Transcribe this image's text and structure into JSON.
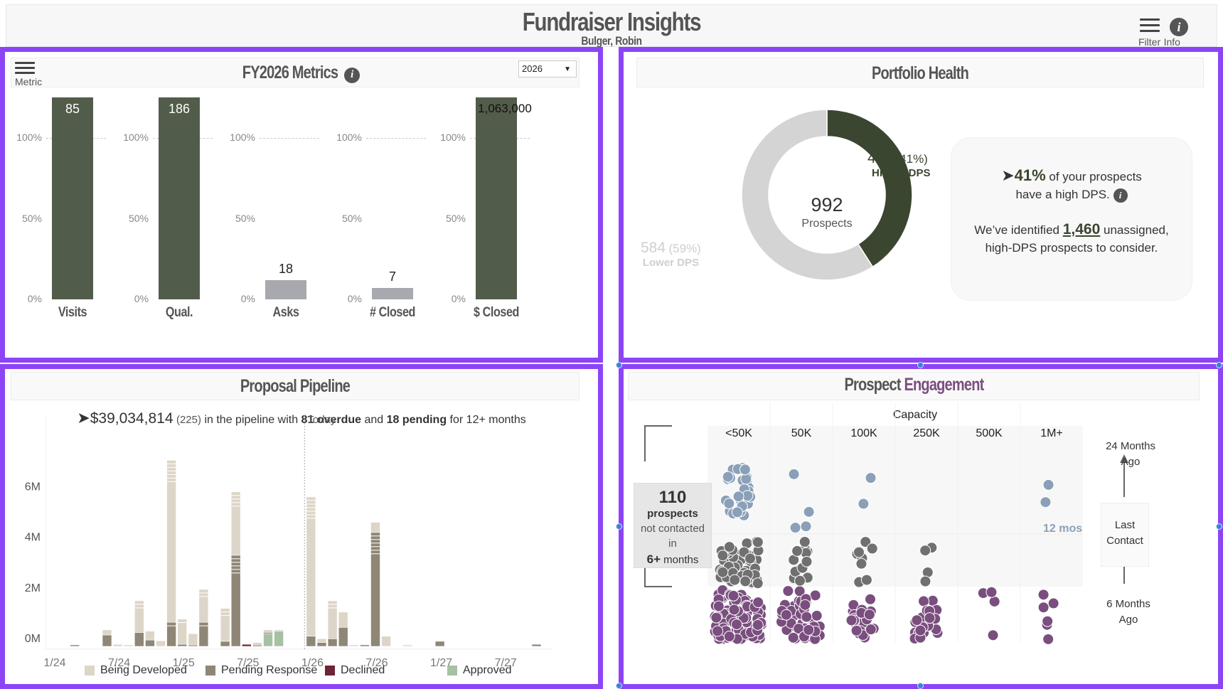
{
  "header": {
    "title": "Fundraiser Insights",
    "subtitle": "Bulger, Robin",
    "filter_label": "Filter",
    "info_label": "Info",
    "filter_icon": "hamburger-menu-icon",
    "info_icon": "info-icon"
  },
  "colors": {
    "panel_border": "#8d44f7",
    "accent_green": "#525c4a",
    "dark_green": "#3a4630",
    "gray_bar": "#a7a9ae",
    "purple_engagement": "#7a4e7e",
    "blue_dot": "#8aa0b8",
    "gray_dot": "#707070"
  },
  "metrics": {
    "title": "FY2026 Metrics",
    "menu_label": "Metric",
    "year_select": {
      "value": "2026"
    },
    "tick_labels": [
      "100%",
      "50%",
      "0%"
    ],
    "items": [
      {
        "label": "Visits",
        "value": "85",
        "pct_of_goal": 1.25,
        "color": "#525c4a",
        "label_inside": true
      },
      {
        "label": "Qual.",
        "value": "186",
        "pct_of_goal": 1.25,
        "color": "#525c4a",
        "label_inside": true
      },
      {
        "label": "Asks",
        "value": "18",
        "pct_of_goal": 0.12,
        "color": "#a7a9ae",
        "label_inside": false
      },
      {
        "label": "# Closed",
        "value": "7",
        "pct_of_goal": 0.07,
        "color": "#a7a9ae",
        "label_inside": false
      },
      {
        "label": "$ Closed",
        "value": "1,063,000",
        "pct_of_goal": 1.25,
        "color": "#525c4a",
        "label_inside": true
      }
    ]
  },
  "portfolio": {
    "title": "Portfolio Health",
    "total": "992",
    "total_label": "Prospects",
    "higher": {
      "count": "408",
      "pct": "(41%)",
      "label": "Higher DPS",
      "share": 0.41,
      "color": "#3a4630"
    },
    "lower": {
      "count": "584",
      "pct": "(59%)",
      "label": "Lower DPS",
      "share": 0.59,
      "color": "#d4d4d4"
    },
    "insight": {
      "pct": "41%",
      "line1_rest": "of your prospects",
      "line2": "have a high DPS.",
      "line3_pre": "We’ve identified",
      "link_value": "1,460",
      "line3_post": "unassigned,",
      "line4": "high-DPS prospects to consider."
    }
  },
  "pipeline": {
    "title": "Proposal Pipeline",
    "summary": {
      "amount": "$39,034,814",
      "count": "(225)",
      "text1": "in the pipeline with",
      "overdue": "81 overdue",
      "text2": "and",
      "pending": "18 pending",
      "text3": "for 12+ months"
    },
    "today_label": "Today",
    "legend": [
      {
        "label": "Being Developed",
        "color": "#ddd6c8"
      },
      {
        "label": "Pending Response",
        "color": "#8f8676"
      },
      {
        "label": "Declined",
        "color": "#6e2336"
      },
      {
        "label": "Approved",
        "color": "#a7c1a3"
      }
    ]
  },
  "chart_data": {
    "type": "bar",
    "title": "Proposal Pipeline",
    "stacked": true,
    "xlabel": "",
    "ylabel": "",
    "y_ticks": [
      "0M",
      "2M",
      "4M",
      "6M"
    ],
    "ylim": [
      0,
      7.5
    ],
    "x_ticks": [
      "1/24",
      "7/24",
      "1/25",
      "7/25",
      "1/26",
      "7/26",
      "1/27",
      "7/27"
    ],
    "x_tick_months": [
      0,
      6,
      12,
      18,
      24,
      30,
      36,
      42
    ],
    "today_month": 23,
    "series_names": [
      "Being Developed",
      "Pending Response",
      "Declined",
      "Approved"
    ],
    "bars": [
      {
        "month": 2,
        "bd": 0.0,
        "pr": 0.02,
        "dec": 0,
        "app": 0
      },
      {
        "month": 5,
        "bd": 0.2,
        "pr": 0.45,
        "dec": 0,
        "app": 0
      },
      {
        "month": 6,
        "bd": 0.08,
        "pr": 0.0,
        "dec": 0,
        "app": 0
      },
      {
        "month": 7,
        "bd": 0.05,
        "pr": 0.0,
        "dec": 0,
        "app": 0
      },
      {
        "month": 8,
        "bd": 1.25,
        "pr": 0.55,
        "dec": 0,
        "app": 0
      },
      {
        "month": 9,
        "bd": 0.35,
        "pr": 0.25,
        "dec": 0,
        "app": 0
      },
      {
        "month": 10,
        "bd": 0.22,
        "pr": 0.0,
        "dec": 0,
        "app": 0
      },
      {
        "month": 11,
        "bd": 6.4,
        "pr": 0.95,
        "dec": 0,
        "app": 0
      },
      {
        "month": 12,
        "bd": 1.0,
        "pr": 0.08,
        "dec": 0,
        "app": 0
      },
      {
        "month": 13,
        "bd": 0.45,
        "pr": 0.05,
        "dec": 0,
        "app": 0
      },
      {
        "month": 14,
        "bd": 1.3,
        "pr": 0.95,
        "dec": 0,
        "app": 0
      },
      {
        "month": 16,
        "bd": 1.3,
        "pr": 0.2,
        "dec": 0,
        "app": 0
      },
      {
        "month": 17,
        "bd": 2.5,
        "pr": 3.6,
        "dec": 0,
        "app": 0
      },
      {
        "month": 18,
        "bd": 0.0,
        "pr": 0.0,
        "dec": 0.08,
        "app": 0
      },
      {
        "month": 19,
        "bd": 0.1,
        "pr": 0.05,
        "dec": 0,
        "app": 0
      },
      {
        "month": 20,
        "bd": 0.1,
        "pr": 0.05,
        "dec": 0,
        "app": 0.5
      },
      {
        "month": 21,
        "bd": 0.05,
        "pr": 0.0,
        "dec": 0,
        "app": 0.6
      },
      {
        "month": 24,
        "bd": 5.5,
        "pr": 0.4,
        "dec": 0,
        "app": 0
      },
      {
        "month": 25,
        "bd": 0.15,
        "pr": 0.15,
        "dec": 0,
        "app": 0
      },
      {
        "month": 26,
        "bd": 1.5,
        "pr": 0.3,
        "dec": 0,
        "app": 0
      },
      {
        "month": 27,
        "bd": 0.6,
        "pr": 0.75,
        "dec": 0,
        "app": 0
      },
      {
        "month": 28,
        "bd": 0.03,
        "pr": 0.0,
        "dec": 0,
        "app": 0
      },
      {
        "month": 29,
        "bd": 0.0,
        "pr": 0.06,
        "dec": 0,
        "app": 0
      },
      {
        "month": 30,
        "bd": 0.4,
        "pr": 4.5,
        "dec": 0,
        "app": 0
      },
      {
        "month": 31,
        "bd": 0.4,
        "pr": 0.0,
        "dec": 0,
        "app": 0
      },
      {
        "month": 33,
        "bd": 0.02,
        "pr": 0.0,
        "dec": 0,
        "app": 0
      },
      {
        "month": 36,
        "bd": 0.0,
        "pr": 0.2,
        "dec": 0,
        "app": 0
      },
      {
        "month": 45,
        "bd": 0.0,
        "pr": 0.08,
        "dec": 0,
        "app": 0
      }
    ]
  },
  "engagement": {
    "title_part1": "Prospect",
    "title_part2": "Engagement",
    "capacity_label": "Capacity",
    "capacity_columns": [
      "<50K",
      "50K",
      "100K",
      "250K",
      "500K",
      "1M+"
    ],
    "callout": {
      "count": "110",
      "line1": "prospects",
      "line2": "not contacted",
      "line3": "in",
      "months_num": "6+",
      "months_word": "months"
    },
    "top_label_1": "24 Months",
    "top_label_2": "Ago",
    "axis_label_1": "Last",
    "axis_label_2": "Contact",
    "bottom_label_1": "6 Months",
    "bottom_label_2": "Ago",
    "tooltip_label": "12 mos",
    "dot_counts": {
      "recent": [
        120,
        60,
        25,
        22,
        4,
        6
      ],
      "mid": [
        60,
        14,
        8,
        4,
        0,
        0
      ],
      "old": [
        30,
        4,
        2,
        0,
        0,
        2
      ]
    }
  }
}
